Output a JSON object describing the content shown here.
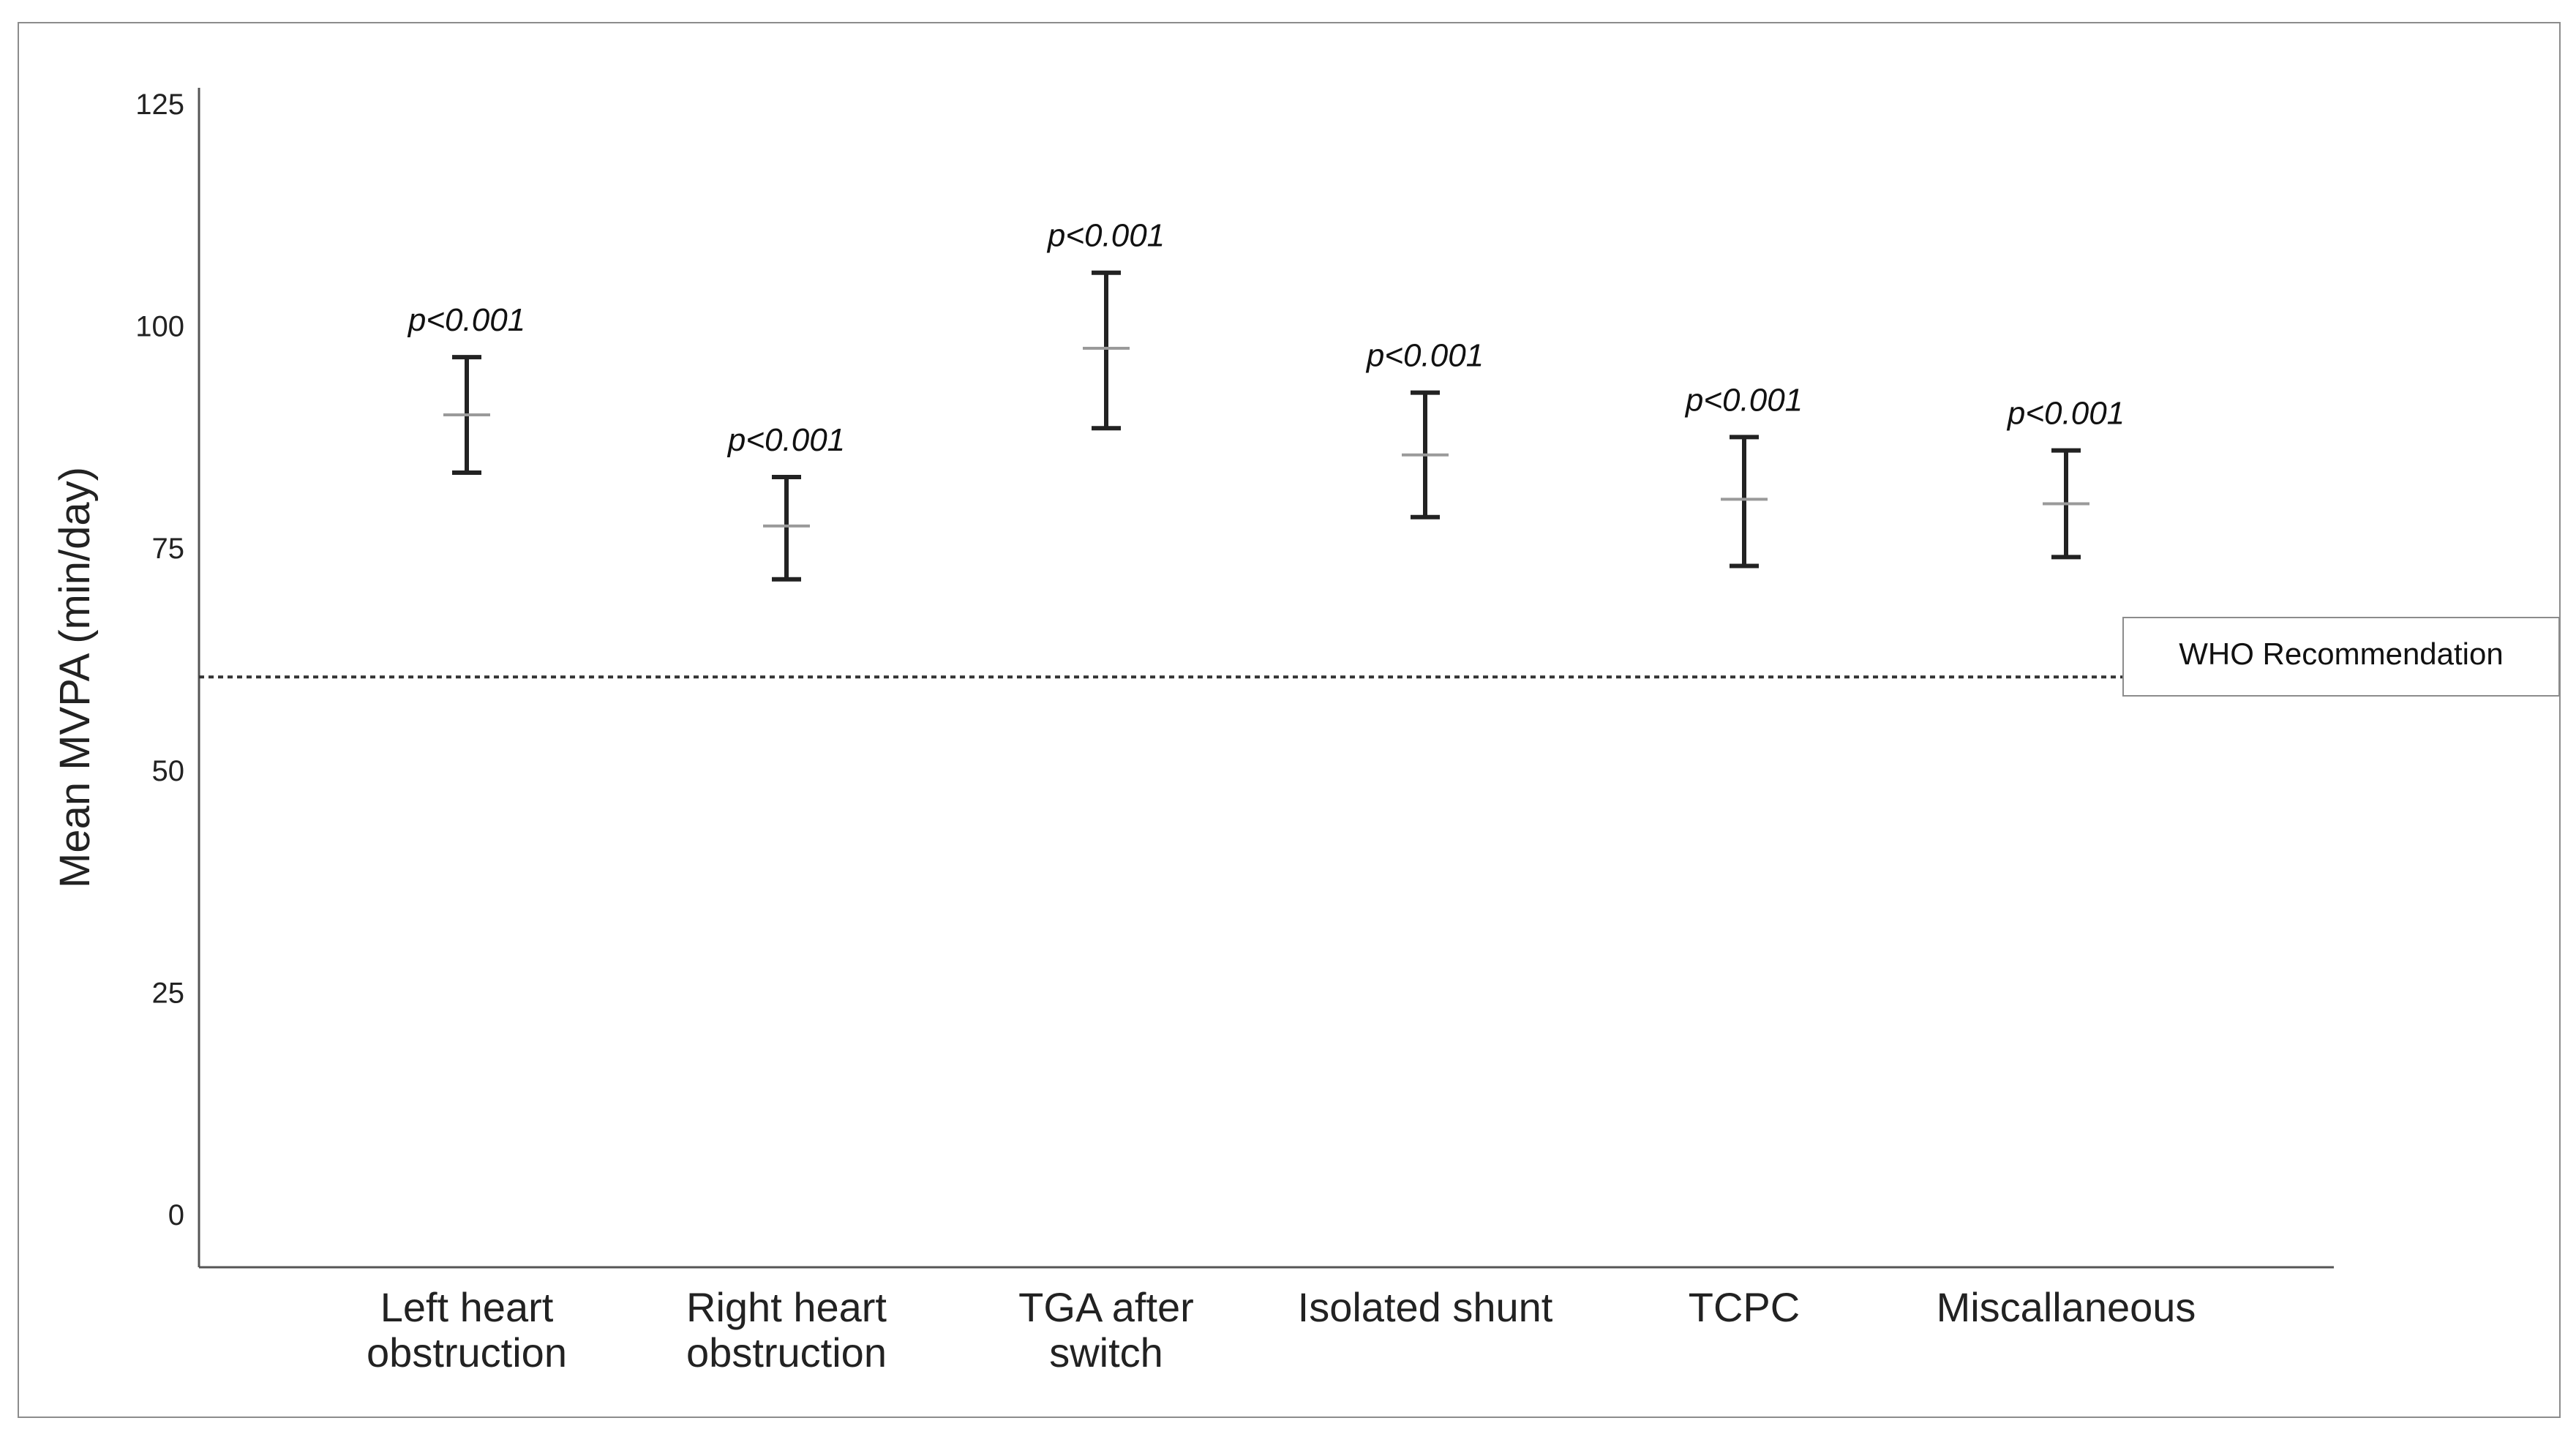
{
  "chart_data": {
    "type": "errorbar",
    "title": "",
    "xlabel": "",
    "ylabel": "Mean MVPA (min/day)",
    "ylim": [
      -6,
      128
    ],
    "yticks": [
      0,
      25,
      50,
      75,
      100,
      125
    ],
    "grid": false,
    "categories": [
      [
        "Left heart",
        "obstruction"
      ],
      [
        "Right heart",
        "obstruction"
      ],
      [
        "TGA after",
        "switch"
      ],
      [
        "Isolated shunt"
      ],
      [
        "TCPC"
      ],
      [
        "Miscallaneous"
      ]
    ],
    "means": [
      90,
      77.5,
      97.5,
      85.5,
      80.5,
      80
    ],
    "lower": [
      83.5,
      71.5,
      88.5,
      78.5,
      73,
      74
    ],
    "upper": [
      96.5,
      83,
      106,
      92.5,
      87.5,
      86
    ],
    "annotations": [
      "p<0.001",
      "p<0.001",
      "p<0.001",
      "p<0.001",
      "p<0.001",
      "p<0.001"
    ],
    "reference_line": {
      "value": 60.5,
      "label": "WHO Recommendation",
      "style": "dotted"
    }
  }
}
